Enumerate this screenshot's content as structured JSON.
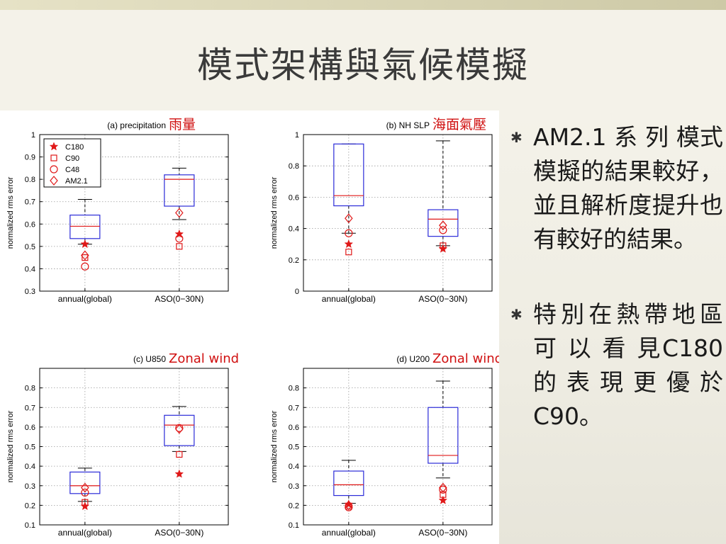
{
  "slide": {
    "title": "模式架構與氣候模擬"
  },
  "bullets": [
    "AM2.1 系 列 模式模擬的結果較好，並且解析度提升也有較好的結果。",
    "特別在熱帶地區 可 以 看 見C180的表現更優於C90。"
  ],
  "bullet_mark": "✱",
  "colors": {
    "box": "#2b2bd8",
    "median": "#e01818",
    "marker": "#e01818",
    "annotation": "#d01010"
  },
  "chart_data": [
    {
      "type": "box",
      "title": "(a) precipitation",
      "annotation": "雨量",
      "ylabel": "normalized rms error",
      "categories": [
        "annual(global)",
        "ASO(0−30N)"
      ],
      "ylim": [
        0.3,
        1.0
      ],
      "yticks": [
        0.3,
        0.4,
        0.5,
        0.6,
        0.7,
        0.8,
        0.9,
        1
      ],
      "grid": true,
      "legend": {
        "position": "top-left",
        "entries": [
          "C180",
          "C90",
          "C48",
          "AM2.1"
        ]
      },
      "boxes": [
        {
          "whisker_low": 0.51,
          "q1": 0.535,
          "median": 0.59,
          "q3": 0.64,
          "whisker_high": 0.71
        },
        {
          "whisker_low": 0.62,
          "q1": 0.68,
          "median": 0.8,
          "q3": 0.82,
          "whisker_high": 0.85
        }
      ],
      "series": [
        {
          "name": "C180",
          "marker": "star",
          "values": [
            0.51,
            0.555
          ]
        },
        {
          "name": "C90",
          "marker": "square",
          "values": [
            0.45,
            0.5
          ]
        },
        {
          "name": "C48",
          "marker": "circle",
          "values": [
            0.41,
            0.535
          ]
        },
        {
          "name": "AM2.1",
          "marker": "diamond",
          "values": [
            0.46,
            0.65
          ]
        }
      ]
    },
    {
      "type": "box",
      "title": "(b) NH SLP",
      "annotation": "海面氣壓",
      "ylabel": "normalized rms error",
      "categories": [
        "annual(global)",
        "ASO(0−30N)"
      ],
      "ylim": [
        0,
        1.0
      ],
      "yticks": [
        0,
        0.2,
        0.4,
        0.6,
        0.8,
        1
      ],
      "grid": true,
      "boxes": [
        {
          "whisker_low": 0.37,
          "q1": 0.545,
          "median": 0.61,
          "q3": 0.94,
          "whisker_high": 0.94
        },
        {
          "whisker_low": 0.29,
          "q1": 0.35,
          "median": 0.46,
          "q3": 0.52,
          "whisker_high": 0.96
        }
      ],
      "series": [
        {
          "name": "C180",
          "marker": "star",
          "values": [
            0.3,
            0.27
          ]
        },
        {
          "name": "C90",
          "marker": "square",
          "values": [
            0.25,
            0.29
          ]
        },
        {
          "name": "C48",
          "marker": "circle",
          "values": [
            0.37,
            0.39
          ]
        },
        {
          "name": "AM2.1",
          "marker": "diamond",
          "values": [
            0.465,
            0.42
          ]
        }
      ]
    },
    {
      "type": "box",
      "title": "(c) U850",
      "annotation": "Zonal wind",
      "ylabel": "normalized rms error",
      "categories": [
        "annual(global)",
        "ASO(0−30N)"
      ],
      "ylim": [
        0.1,
        0.9
      ],
      "yticks": [
        0.1,
        0.2,
        0.3,
        0.4,
        0.5,
        0.6,
        0.7,
        0.8
      ],
      "grid": true,
      "boxes": [
        {
          "whisker_low": 0.22,
          "q1": 0.26,
          "median": 0.3,
          "q3": 0.37,
          "whisker_high": 0.39
        },
        {
          "whisker_low": 0.475,
          "q1": 0.505,
          "median": 0.61,
          "q3": 0.66,
          "whisker_high": 0.705
        }
      ],
      "series": [
        {
          "name": "C180",
          "marker": "star",
          "values": [
            0.195,
            0.36
          ]
        },
        {
          "name": "C90",
          "marker": "square",
          "values": [
            0.215,
            0.46
          ]
        },
        {
          "name": "C48",
          "marker": "circle",
          "values": [
            0.265,
            0.595
          ]
        },
        {
          "name": "AM2.1",
          "marker": "diamond",
          "values": [
            0.29,
            0.59
          ]
        }
      ]
    },
    {
      "type": "box",
      "title": "(d) U200",
      "annotation": "Zonal wind",
      "ylabel": "normalized rms error",
      "categories": [
        "annual(global)",
        "ASO(0−30N)"
      ],
      "ylim": [
        0.1,
        0.9
      ],
      "yticks": [
        0.1,
        0.2,
        0.3,
        0.4,
        0.5,
        0.6,
        0.7,
        0.8
      ],
      "grid": true,
      "boxes": [
        {
          "whisker_low": 0.21,
          "q1": 0.25,
          "median": 0.305,
          "q3": 0.375,
          "whisker_high": 0.43
        },
        {
          "whisker_low": 0.34,
          "q1": 0.415,
          "median": 0.455,
          "q3": 0.7,
          "whisker_high": 0.835
        }
      ],
      "series": [
        {
          "name": "C180",
          "marker": "star",
          "values": [
            0.205,
            0.225
          ]
        },
        {
          "name": "C90",
          "marker": "square",
          "values": [
            0.195,
            0.255
          ]
        },
        {
          "name": "C48",
          "marker": "circle",
          "values": [
            0.19,
            0.28
          ]
        },
        {
          "name": "AM2.1",
          "marker": "diamond",
          "values": [
            0.2,
            0.29
          ]
        }
      ]
    }
  ]
}
